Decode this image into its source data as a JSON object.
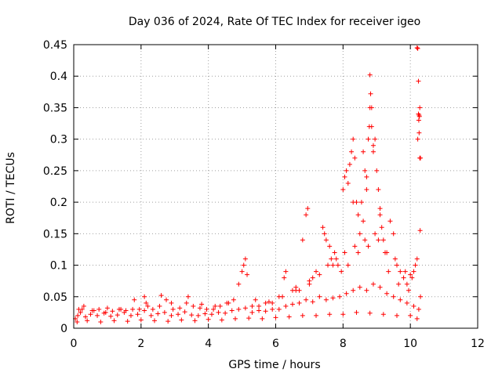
{
  "chart_data": {
    "type": "scatter",
    "title": "Day 036 of 2024, Rate Of TEC Index for receiver igeo",
    "xlabel": "GPS time / hours",
    "ylabel": "ROTI / TECUs",
    "xlim": [
      0,
      12
    ],
    "ylim": [
      0,
      0.45
    ],
    "grid": true,
    "marker": "+",
    "color": "#ff0000",
    "x_ticks": [
      "0",
      "2",
      "4",
      "6",
      "8",
      "10",
      "12"
    ],
    "y_ticks": [
      "0",
      "0.05",
      "0.1",
      "0.15",
      "0.2",
      "0.25",
      "0.3",
      "0.35",
      "0.4",
      "0.45"
    ],
    "series": [
      {
        "name": "ROTI",
        "x": [
          0.05,
          0.12,
          0.2,
          0.35,
          0.5,
          0.7,
          0.9,
          1.1,
          1.3,
          1.5,
          1.7,
          1.9,
          2.1,
          2.3,
          2.5,
          2.7,
          2.9,
          3.1,
          3.3,
          3.5,
          3.7,
          3.9,
          4.1,
          4.3,
          4.5,
          4.7,
          4.9,
          5.1,
          5.3,
          5.5,
          5.7,
          5.9,
          6.1,
          6.3,
          6.5,
          6.7,
          6.9,
          7.1,
          7.3,
          7.5,
          7.7,
          7.9,
          8.1,
          8.3,
          8.5,
          8.7,
          8.9,
          9.1,
          9.3,
          9.5,
          9.7,
          9.9,
          10.1,
          10.25,
          0.1,
          0.4,
          0.8,
          1.2,
          1.6,
          2.0,
          2.4,
          2.8,
          3.2,
          3.6,
          4.0,
          4.4,
          4.8,
          5.2,
          5.6,
          6.0,
          6.4,
          6.8,
          7.2,
          7.6,
          8.0,
          8.4,
          8.8,
          9.2,
          9.6,
          10.0,
          10.2,
          1.8,
          2.1,
          2.6,
          3.4,
          4.9,
          5.0,
          5.05,
          5.1,
          5.15,
          6.25,
          6.3,
          6.9,
          6.95,
          6.8,
          7.4,
          7.45,
          7.5,
          7.6,
          7.8,
          8.0,
          8.05,
          8.1,
          8.15,
          8.2,
          8.25,
          8.3,
          8.35,
          8.4,
          8.45,
          8.5,
          8.55,
          8.6,
          8.65,
          8.7,
          8.75,
          8.8,
          8.85,
          8.9,
          8.95,
          9.0,
          9.05,
          9.1,
          9.15,
          9.2,
          9.3,
          9.4,
          9.5,
          9.6,
          9.7,
          9.8,
          9.9,
          10.0,
          10.1,
          10.15,
          10.2,
          10.22,
          10.24,
          10.25,
          10.26,
          10.28,
          10.3,
          8.8,
          8.82,
          8.85,
          8.78,
          8.9,
          8.3,
          8.6,
          8.7,
          9.1,
          10.2,
          10.22,
          10.24,
          10.26,
          10.27,
          10.28,
          10.29,
          0.15,
          0.3,
          0.6,
          1.0,
          1.4,
          2.2,
          2.9,
          3.8,
          4.2,
          4.6,
          5.4,
          5.8,
          6.2,
          6.6,
          7.0,
          7.3,
          7.7,
          8.05,
          8.35,
          8.65,
          8.95,
          9.25,
          9.55,
          9.85,
          10.05,
          10.3,
          7.0,
          7.1,
          7.2,
          7.55,
          7.65,
          7.75,
          7.85,
          7.95,
          8.15,
          8.45,
          8.75,
          9.05,
          9.35,
          9.65,
          9.95,
          6.5,
          6.6,
          6.7,
          6.1,
          5.9,
          5.7,
          5.5,
          5.3,
          4.75,
          4.55,
          4.35,
          4.15,
          3.95,
          3.75,
          3.55,
          3.35,
          3.15,
          2.95,
          2.75,
          2.55,
          2.35,
          2.15,
          1.95,
          1.75,
          1.55,
          1.35,
          1.15,
          0.95,
          0.75,
          0.55,
          0.25
        ],
        "y": [
          0.015,
          0.02,
          0.025,
          0.018,
          0.022,
          0.02,
          0.024,
          0.019,
          0.021,
          0.025,
          0.02,
          0.022,
          0.028,
          0.02,
          0.023,
          0.025,
          0.02,
          0.022,
          0.026,
          0.021,
          0.02,
          0.023,
          0.022,
          0.025,
          0.024,
          0.028,
          0.03,
          0.032,
          0.025,
          0.028,
          0.027,
          0.03,
          0.03,
          0.035,
          0.038,
          0.04,
          0.045,
          0.042,
          0.05,
          0.045,
          0.048,
          0.05,
          0.055,
          0.06,
          0.065,
          0.06,
          0.07,
          0.065,
          0.055,
          0.05,
          0.045,
          0.04,
          0.035,
          0.03,
          0.01,
          0.012,
          0.01,
          0.012,
          0.011,
          0.013,
          0.012,
          0.011,
          0.013,
          0.012,
          0.014,
          0.013,
          0.015,
          0.016,
          0.015,
          0.017,
          0.018,
          0.02,
          0.02,
          0.022,
          0.022,
          0.025,
          0.024,
          0.022,
          0.02,
          0.02,
          0.015,
          0.045,
          0.05,
          0.052,
          0.05,
          0.07,
          0.09,
          0.1,
          0.11,
          0.085,
          0.08,
          0.09,
          0.18,
          0.19,
          0.14,
          0.16,
          0.15,
          0.14,
          0.13,
          0.11,
          0.22,
          0.24,
          0.25,
          0.23,
          0.26,
          0.28,
          0.3,
          0.27,
          0.2,
          0.18,
          0.15,
          0.2,
          0.17,
          0.25,
          0.22,
          0.3,
          0.35,
          0.32,
          0.28,
          0.3,
          0.25,
          0.22,
          0.19,
          0.16,
          0.14,
          0.12,
          0.17,
          0.15,
          0.1,
          0.09,
          0.08,
          0.07,
          0.085,
          0.09,
          0.1,
          0.11,
          0.3,
          0.34,
          0.33,
          0.31,
          0.35,
          0.27,
          0.402,
          0.372,
          0.35,
          0.32,
          0.29,
          0.2,
          0.28,
          0.24,
          0.18,
          0.445,
          0.444,
          0.392,
          0.338,
          0.336,
          0.27,
          0.155,
          0.03,
          0.035,
          0.028,
          0.032,
          0.03,
          0.035,
          0.04,
          0.038,
          0.035,
          0.04,
          0.045,
          0.042,
          0.05,
          0.06,
          0.07,
          0.085,
          0.1,
          0.12,
          0.13,
          0.14,
          0.15,
          0.12,
          0.11,
          0.09,
          0.08,
          0.05,
          0.075,
          0.08,
          0.09,
          0.1,
          0.11,
          0.12,
          0.1,
          0.09,
          0.1,
          0.12,
          0.13,
          0.14,
          0.09,
          0.07,
          0.06,
          0.06,
          0.065,
          0.06,
          0.05,
          0.04,
          0.04,
          0.035,
          0.035,
          0.045,
          0.04,
          0.035,
          0.03,
          0.03,
          0.032,
          0.035,
          0.04,
          0.032,
          0.03,
          0.045,
          0.035,
          0.03,
          0.04,
          0.03,
          0.03,
          0.028,
          0.03,
          0.027,
          0.025,
          0.03,
          0.028,
          0.03
        ]
      }
    ]
  }
}
